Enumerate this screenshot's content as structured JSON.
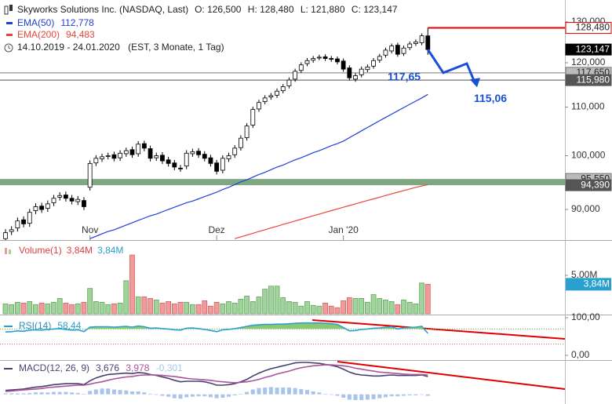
{
  "chart_data": [
    {
      "type": "candlestick",
      "title": "Skyworks Solutions Inc. (NASDAQ, Last)",
      "ohlc_labels": [
        "O: 126,500",
        "H: 128,480",
        "L: 121,880",
        "C: 123,147"
      ],
      "period": "14.10.2019 - 24.01.2020",
      "settings": "(EST, 3 Monate, 1 Tag)",
      "log_scale": true,
      "ylim": [
        84.9,
        135.7
      ],
      "yticks": [
        {
          "value": 130,
          "label": "130,000"
        },
        {
          "value": 120,
          "label": "120,000"
        },
        {
          "value": 110,
          "label": "110,000"
        },
        {
          "value": 100,
          "label": "100,000"
        },
        {
          "value": 90,
          "label": "90,000"
        }
      ],
      "xticks": [
        {
          "value": 14,
          "label": "Nov"
        },
        {
          "value": 35,
          "label": "Dez"
        },
        {
          "value": 56,
          "label": "Jan '20"
        }
      ],
      "up_color": "#ffffff",
      "down_color": "#000000",
      "open": [
        85.0,
        86.2,
        86.8,
        88.2,
        87.6,
        89.8,
        90.6,
        90.2,
        91.2,
        92.2,
        92.6,
        92.0,
        91.4,
        91.6,
        94.0,
        98.6,
        99.4,
        99.9,
        100.2,
        99.6,
        100.4,
        101.2,
        100.4,
        102.4,
        101.4,
        99.6,
        100.1,
        99.2,
        98.6,
        97.6,
        98.0,
        100.4,
        100.9,
        100.3,
        99.6,
        98.6,
        97.2,
        99.4,
        100.2,
        101.6,
        103.6,
        106.2,
        109.6,
        111.2,
        112.2,
        112.6,
        113.6,
        114.7,
        116.2,
        118.2,
        119.8,
        120.6,
        121.2,
        121.4,
        121.0,
        120.9,
        120.4,
        118.8,
        116.2,
        117.2,
        118.4,
        119.2,
        120.6,
        121.8,
        122.8,
        124.2,
        122.2,
        123.6,
        124.6,
        124.8,
        126.5
      ],
      "high": [
        86.6,
        87.1,
        88.6,
        88.8,
        90.1,
        91.1,
        91.2,
        91.6,
        92.6,
        93.1,
        93.2,
        92.6,
        92.4,
        92.2,
        99.1,
        100.1,
        100.4,
        100.6,
        100.8,
        101.1,
        101.6,
        101.8,
        102.9,
        103.0,
        102.0,
        100.6,
        100.7,
        99.8,
        99.2,
        98.2,
        101.1,
        101.4,
        101.5,
        100.9,
        100.2,
        99.2,
        100.1,
        100.6,
        102.1,
        104.1,
        106.6,
        110.1,
        111.6,
        112.6,
        113.1,
        114.1,
        115.1,
        116.6,
        118.6,
        120.1,
        121.1,
        121.6,
        121.9,
        122.0,
        121.6,
        121.5,
        121.0,
        119.4,
        117.6,
        119.1,
        119.6,
        121.1,
        122.1,
        123.6,
        124.6,
        124.8,
        124.1,
        125.1,
        125.6,
        127.1,
        128.48
      ],
      "low": [
        84.4,
        85.6,
        86.2,
        86.9,
        87.0,
        89.2,
        89.4,
        89.6,
        90.6,
        91.6,
        91.4,
        90.9,
        90.8,
        89.9,
        93.4,
        98.0,
        98.8,
        99.3,
        98.9,
        99.0,
        99.8,
        99.6,
        99.8,
        100.9,
        98.9,
        99.0,
        98.4,
        97.9,
        97.2,
        96.9,
        97.4,
        99.8,
        99.6,
        98.9,
        97.9,
        96.4,
        96.6,
        98.8,
        99.6,
        101.0,
        103.0,
        105.6,
        109.0,
        110.6,
        111.6,
        112.0,
        113.0,
        114.1,
        115.6,
        117.6,
        119.2,
        120.0,
        120.6,
        120.4,
        120.2,
        119.6,
        117.9,
        115.9,
        115.6,
        116.6,
        117.8,
        118.6,
        120.0,
        121.2,
        122.2,
        121.4,
        121.6,
        123.0,
        124.0,
        124.2,
        121.88
      ],
      "close": [
        86.0,
        86.5,
        88.0,
        87.5,
        89.5,
        90.5,
        90.0,
        91.0,
        92.0,
        92.5,
        92.0,
        91.5,
        91.8,
        90.5,
        98.5,
        99.5,
        99.8,
        100.0,
        99.5,
        100.5,
        101.0,
        100.2,
        102.3,
        101.5,
        99.5,
        100.0,
        99.0,
        98.5,
        97.8,
        97.5,
        100.5,
        100.8,
        100.2,
        99.5,
        98.5,
        97.0,
        99.5,
        100.0,
        101.5,
        103.5,
        106.0,
        109.5,
        111.0,
        112.0,
        112.5,
        113.5,
        114.5,
        116.0,
        118.0,
        119.5,
        120.5,
        121.0,
        121.3,
        121.0,
        120.8,
        120.2,
        118.5,
        116.5,
        117.0,
        118.5,
        119.0,
        120.5,
        121.5,
        123.0,
        124.0,
        122.0,
        123.5,
        124.5,
        125.0,
        126.5,
        123.147
      ],
      "series": [
        {
          "name": "EMA(50)",
          "value_label": "112,778",
          "color": "#1f3fd8",
          "values": [
            null,
            null,
            null,
            null,
            null,
            null,
            null,
            null,
            null,
            null,
            null,
            null,
            null,
            null,
            85.0,
            85.4,
            85.8,
            86.2,
            86.5,
            86.9,
            87.3,
            87.7,
            88.1,
            88.5,
            88.9,
            89.2,
            89.6,
            90.0,
            90.4,
            90.8,
            91.2,
            91.5,
            91.9,
            92.3,
            92.7,
            93.1,
            93.6,
            94.0,
            94.5,
            95.0,
            95.4,
            95.9,
            96.4,
            96.8,
            97.3,
            97.8,
            98.2,
            98.7,
            99.2,
            99.6,
            100.1,
            100.6,
            101.0,
            101.5,
            102.0,
            102.4,
            102.9,
            103.6,
            104.3,
            105.0,
            105.7,
            106.4,
            107.1,
            107.8,
            108.5,
            109.2,
            109.9,
            110.6,
            111.3,
            112.0,
            112.778
          ]
        },
        {
          "name": "EMA(200)",
          "value_label": "94,483",
          "color": "#e8463a",
          "values": [
            null,
            null,
            null,
            null,
            null,
            null,
            null,
            null,
            null,
            null,
            null,
            null,
            null,
            null,
            null,
            null,
            null,
            null,
            null,
            null,
            null,
            null,
            null,
            null,
            null,
            null,
            null,
            null,
            null,
            null,
            null,
            null,
            null,
            null,
            null,
            null,
            null,
            null,
            85.0,
            85.3,
            85.6,
            85.9,
            86.2,
            86.5,
            86.8,
            87.1,
            87.4,
            87.7,
            88.0,
            88.3,
            88.6,
            88.9,
            89.2,
            89.5,
            89.8,
            90.1,
            90.4,
            90.7,
            91.0,
            91.3,
            91.6,
            91.9,
            92.2,
            92.5,
            92.8,
            93.1,
            93.4,
            93.7,
            94.0,
            94.25,
            94.483
          ]
        }
      ],
      "zone": {
        "from": 95.55,
        "to": 94.39,
        "color": "#7fa882"
      },
      "levels": [
        {
          "value": 117.65,
          "label": "117,650",
          "color": "#777777",
          "tag": "#bbbbbb",
          "extent": "full"
        },
        {
          "value": 95.55,
          "label": "95,550",
          "color": "#777777",
          "tag": "#bbbbbb",
          "extent": "none"
        },
        {
          "value": 128.48,
          "label": "128,480",
          "color": "#e00000",
          "tag": "#ffffff",
          "extent": "right"
        },
        {
          "value": 123.147,
          "label": "123,147",
          "color": "#000000",
          "tag": "#000000",
          "extent": "none"
        },
        {
          "value": 115.98,
          "label": "115,980",
          "color": "#555555",
          "tag": "#555555",
          "extent": "full"
        },
        {
          "value": 94.39,
          "label": "94,390",
          "color": "#555555",
          "tag": "#555555",
          "extent": "none"
        }
      ],
      "annotations": [
        {
          "text": "117,65",
          "value": 117.65,
          "color": "#1a4fd6"
        },
        {
          "text": "115,06",
          "value": 115.06,
          "color": "#1a4fd6"
        }
      ]
    },
    {
      "type": "bar",
      "title": "Volume(1)",
      "value_labels": [
        {
          "text": "3,84M",
          "color": "#e04040"
        },
        {
          "text": "3,84M",
          "color": "#2aa0d0"
        }
      ],
      "tag": {
        "value": 3.84,
        "label": "3,84M",
        "color": "#2aa0d0"
      },
      "ylim": [
        0,
        8.98
      ],
      "yticks": [
        {
          "value": 5,
          "label": "5.00M"
        }
      ],
      "up_color": "#9fd49a",
      "down_color": "#f29a9a",
      "values": [
        1.3,
        1.2,
        1.5,
        1.4,
        1.6,
        1.2,
        1.4,
        1.3,
        1.5,
        2.0,
        1.4,
        1.2,
        1.3,
        1.5,
        3.3,
        1.6,
        1.5,
        1.2,
        1.3,
        1.4,
        4.3,
        7.65,
        2.2,
        2.2,
        2.0,
        1.8,
        1.4,
        1.6,
        1.3,
        1.5,
        1.5,
        1.2,
        1.2,
        1.7,
        1.0,
        1.5,
        1.3,
        1.6,
        1.4,
        1.9,
        2.3,
        1.6,
        2.2,
        3.2,
        3.6,
        3.6,
        2.1,
        1.6,
        1.5,
        1.0,
        1.6,
        1.1,
        1.0,
        1.4,
        1.0,
        0.8,
        1.7,
        2.1,
        2.0,
        2.0,
        1.5,
        2.5,
        2.0,
        1.8,
        1.6,
        1.2,
        1.8,
        1.5,
        1.3,
        4.0,
        3.84
      ]
    },
    {
      "type": "line",
      "title": "RSI(14)",
      "title_color": "#2a90c0",
      "ylim": [
        0,
        100
      ],
      "yticks": [
        {
          "value": 100,
          "label": "100,00"
        },
        {
          "value": 0,
          "label": "0,00"
        }
      ],
      "levels": [
        {
          "value": 70,
          "color": "#66aa55"
        },
        {
          "value": 30,
          "color": "#e06060"
        }
      ],
      "fill_above": {
        "value": 70,
        "color": "#8cc870"
      },
      "series": [
        {
          "value_label": "58,44",
          "color": "#2aa0d0",
          "values": [
            62,
            63,
            65,
            64,
            67,
            68,
            67,
            69,
            70,
            71,
            69,
            67,
            68,
            63,
            75,
            76,
            76,
            76,
            75,
            76,
            77,
            75,
            78,
            76,
            72,
            73,
            71,
            70,
            68,
            67,
            72,
            73,
            71,
            69,
            66,
            63,
            68,
            69,
            71,
            74,
            77,
            80,
            81,
            82,
            82,
            83,
            83,
            84,
            85,
            86,
            86,
            86,
            86,
            85,
            84,
            82,
            74,
            65,
            66,
            69,
            70,
            72,
            73,
            75,
            76,
            70,
            73,
            74,
            75,
            77,
            58.44
          ]
        }
      ]
    },
    {
      "type": "line",
      "title": "MACD(12, 26, 9)",
      "title_color": "#4b3f72",
      "ylim": [
        -2,
        6.6
      ],
      "series": [
        {
          "value_label": "3,676",
          "color": "#4b3f72",
          "values": [
            0.8,
            0.9,
            1.0,
            1.1,
            1.3,
            1.5,
            1.6,
            1.8,
            2.0,
            2.1,
            2.2,
            2.2,
            2.2,
            2.0,
            2.8,
            3.4,
            3.8,
            4.1,
            4.2,
            4.3,
            4.4,
            4.3,
            4.5,
            4.4,
            4.1,
            3.9,
            3.6,
            3.3,
            2.9,
            2.6,
            2.7,
            2.7,
            2.7,
            2.6,
            2.3,
            1.9,
            1.9,
            2.0,
            2.2,
            2.6,
            3.1,
            3.8,
            4.4,
            4.9,
            5.3,
            5.6,
            5.9,
            6.2,
            6.5,
            6.6,
            6.6,
            6.5,
            6.4,
            6.2,
            6.0,
            5.7,
            5.2,
            4.6,
            4.2,
            4.0,
            3.9,
            3.8,
            3.8,
            3.9,
            4.0,
            3.9,
            3.9,
            3.9,
            3.9,
            4.0,
            3.676
          ]
        },
        {
          "value_label": "3,978",
          "color": "#a9559b",
          "values": [
            0.6,
            0.7,
            0.8,
            0.9,
            1.0,
            1.1,
            1.2,
            1.4,
            1.5,
            1.6,
            1.7,
            1.8,
            1.9,
            1.9,
            2.1,
            2.4,
            2.6,
            2.9,
            3.2,
            3.4,
            3.6,
            3.7,
            3.9,
            4.0,
            4.0,
            4.0,
            3.9,
            3.8,
            3.7,
            3.5,
            3.3,
            3.2,
            3.1,
            3.0,
            2.9,
            2.7,
            2.6,
            2.5,
            2.4,
            2.5,
            2.6,
            2.8,
            3.1,
            3.5,
            3.8,
            4.2,
            4.5,
            4.8,
            5.2,
            5.5,
            5.7,
            5.9,
            6.0,
            6.1,
            6.1,
            6.0,
            5.9,
            5.7,
            5.4,
            5.2,
            5.0,
            4.8,
            4.6,
            4.5,
            4.4,
            4.3,
            4.2,
            4.1,
            4.1,
            4.1,
            3.978
          ]
        },
        {
          "type": "bar",
          "value_label": "-0,301",
          "color": "#a8c4e8",
          "values": [
            0.2,
            0.2,
            0.2,
            0.2,
            0.3,
            0.4,
            0.4,
            0.4,
            0.5,
            0.5,
            0.5,
            0.4,
            0.3,
            0.1,
            0.7,
            1.0,
            1.2,
            1.2,
            1.0,
            0.9,
            0.8,
            0.6,
            0.6,
            0.4,
            0.1,
            -0.1,
            -0.3,
            -0.5,
            -0.8,
            -0.9,
            -0.6,
            -0.5,
            -0.4,
            -0.4,
            -0.6,
            -0.8,
            -0.7,
            -0.5,
            -0.2,
            0.1,
            0.5,
            1.0,
            1.3,
            1.4,
            1.5,
            1.4,
            1.4,
            1.4,
            1.3,
            1.1,
            0.9,
            0.6,
            0.4,
            0.1,
            -0.1,
            -0.3,
            -0.7,
            -1.1,
            -1.2,
            -1.2,
            -1.1,
            -1.0,
            -0.8,
            -0.6,
            -0.4,
            -0.4,
            -0.3,
            -0.2,
            -0.2,
            -0.1,
            -0.301
          ]
        }
      ]
    }
  ]
}
